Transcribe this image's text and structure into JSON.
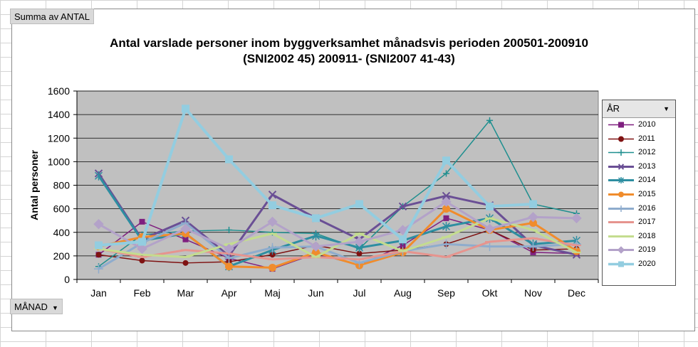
{
  "pivot": {
    "value_field": "Summa av ANTAL",
    "category_field": "MÅNAD",
    "series_field": "ÅR"
  },
  "chart_data": {
    "type": "line",
    "title_line1": "Antal varslade personer inom byggverksamhet månadsvis perioden 200501-200910",
    "title_line2": "(SNI2002 45) 200911- (SNI2007 41-43)",
    "xlabel": "",
    "ylabel": "Antal personer",
    "ylim": [
      0,
      1600
    ],
    "yticks": [
      0,
      200,
      400,
      600,
      800,
      1000,
      1200,
      1400,
      1600
    ],
    "grid": true,
    "legend_position": "right",
    "plot_background": "#c0c0c0",
    "categories": [
      "Jan",
      "Feb",
      "Mar",
      "Apr",
      "Maj",
      "Jun",
      "Jul",
      "Aug",
      "Sep",
      "Okt",
      "Nov",
      "Dec"
    ],
    "series": [
      {
        "name": "2010",
        "color": "#7f1f7f",
        "marker": "square",
        "width": 1.5,
        "values": [
          210,
          490,
          340,
          180,
          90,
          220,
          120,
          290,
          520,
          420,
          230,
          220
        ]
      },
      {
        "name": "2011",
        "color": "#7f1212",
        "marker": "circle",
        "width": 1.5,
        "values": [
          210,
          160,
          140,
          150,
          210,
          290,
          220,
          250,
          300,
          420,
          250,
          260
        ]
      },
      {
        "name": "2012",
        "color": "#1f8f8f",
        "marker": "plus",
        "width": 1.5,
        "values": [
          110,
          380,
          410,
          420,
          400,
          390,
          260,
          620,
          900,
          1350,
          640,
          560
        ]
      },
      {
        "name": "2013",
        "color": "#6a4f95",
        "marker": "x",
        "width": 3,
        "values": [
          900,
          340,
          500,
          200,
          720,
          520,
          340,
          620,
          710,
          630,
          290,
          210
        ]
      },
      {
        "name": "2014",
        "color": "#2d8ea1",
        "marker": "star",
        "width": 3,
        "values": [
          880,
          330,
          390,
          110,
          250,
          370,
          270,
          330,
          450,
          520,
          300,
          330
        ]
      },
      {
        "name": "2015",
        "color": "#f08c2c",
        "marker": "circle",
        "width": 3,
        "values": [
          280,
          360,
          390,
          110,
          100,
          230,
          120,
          230,
          600,
          420,
          480,
          240
        ]
      },
      {
        "name": "2016",
        "color": "#8eaccd",
        "marker": "plus",
        "width": 3,
        "values": [
          90,
          310,
          480,
          180,
          270,
          280,
          140,
          240,
          300,
          280,
          280,
          300
        ]
      },
      {
        "name": "2017",
        "color": "#e6948e",
        "marker": "dash",
        "width": 3,
        "values": [
          260,
          190,
          250,
          220,
          170,
          190,
          170,
          240,
          190,
          320,
          350,
          290
        ]
      },
      {
        "name": "2018",
        "color": "#c4dc8f",
        "marker": "dash",
        "width": 3,
        "values": [
          260,
          210,
          190,
          300,
          390,
          190,
          390,
          240,
          360,
          520,
          420,
          230
        ]
      },
      {
        "name": "2019",
        "color": "#b3a2c9",
        "marker": "diamond",
        "width": 3,
        "values": [
          470,
          260,
          430,
          260,
          490,
          280,
          320,
          420,
          660,
          430,
          530,
          520
        ]
      },
      {
        "name": "2020",
        "color": "#93cde0",
        "marker": "square",
        "width": 4,
        "values": [
          290,
          320,
          1450,
          1020,
          630,
          520,
          640,
          340,
          1010,
          620,
          640,
          null
        ]
      }
    ]
  }
}
